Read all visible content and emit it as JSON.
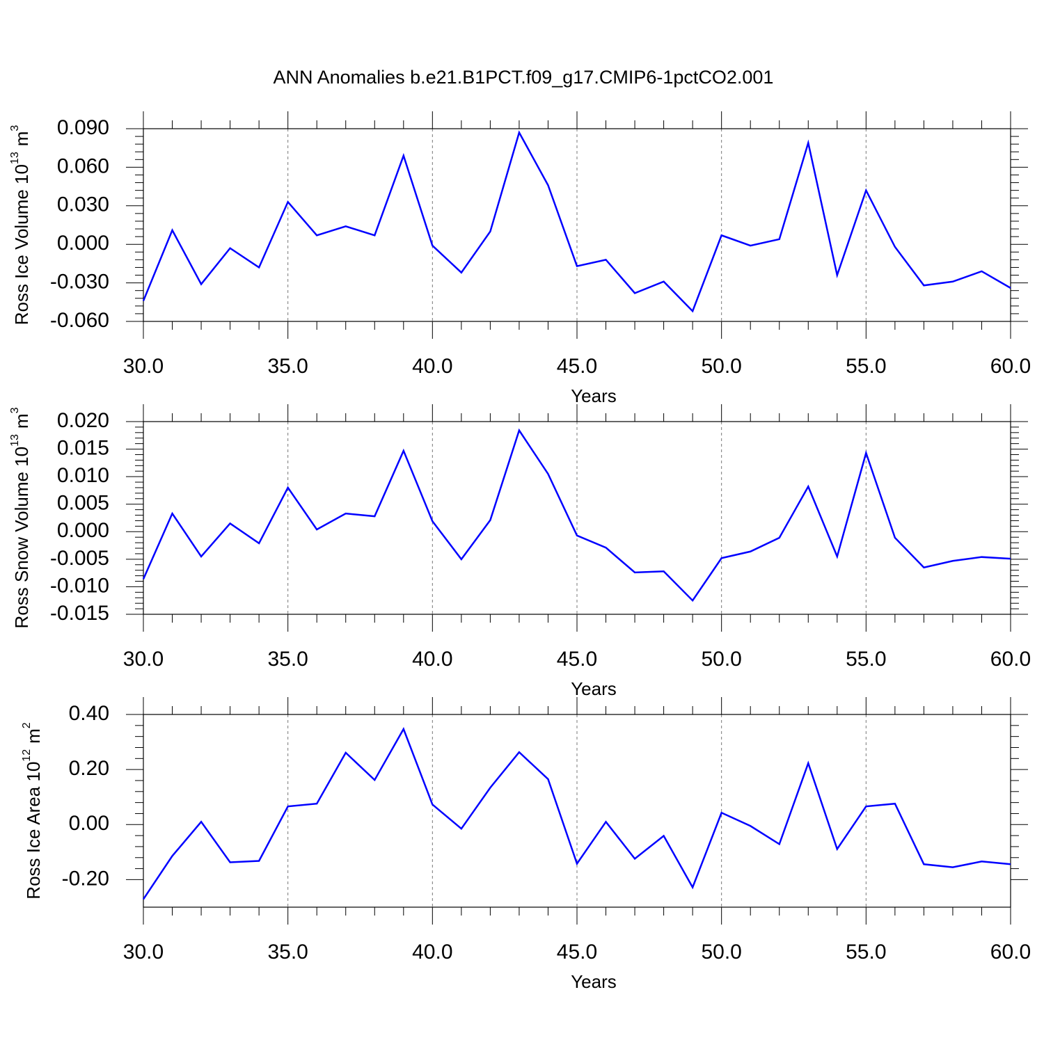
{
  "chart_data": [
    {
      "type": "line",
      "title": "ANN Anomalies b.e21.B1PCT.f09_g17.CMIP6-1pctCO2.001",
      "xlabel": "Years",
      "ylabel": [
        "Ross Ice Volume 10",
        "13",
        "m",
        "3"
      ],
      "x": [
        30,
        31,
        32,
        33,
        34,
        35,
        36,
        37,
        38,
        39,
        40,
        41,
        42,
        43,
        44,
        45,
        46,
        47,
        48,
        49,
        50,
        51,
        52,
        53,
        54,
        55,
        56,
        57,
        58,
        59,
        60
      ],
      "values": [
        -0.044,
        0.011,
        -0.031,
        -0.003,
        -0.018,
        0.033,
        0.007,
        0.014,
        0.007,
        0.069,
        -0.001,
        -0.022,
        0.01,
        0.087,
        0.046,
        -0.017,
        -0.012,
        -0.038,
        -0.029,
        -0.052,
        0.007,
        -0.001,
        0.004,
        0.079,
        -0.024,
        0.042,
        -0.002,
        -0.032,
        -0.029,
        -0.021,
        -0.034
      ],
      "color": "#0000ff",
      "xlim": [
        30,
        60
      ],
      "xticks": [
        {
          "value": 30,
          "label": "30.0"
        },
        {
          "value": 35,
          "label": "35.0"
        },
        {
          "value": 40,
          "label": "40.0"
        },
        {
          "value": 45,
          "label": "45.0"
        },
        {
          "value": 50,
          "label": "50.0"
        },
        {
          "value": 55,
          "label": "55.0"
        },
        {
          "value": 60,
          "label": "60.0"
        }
      ],
      "ylim": [
        -0.06,
        0.09
      ],
      "yticks": [
        {
          "value": -0.06,
          "label": "-0.060"
        },
        {
          "value": -0.03,
          "label": "-0.030"
        },
        {
          "value": 0,
          "label": "0.000"
        },
        {
          "value": 0.03,
          "label": "0.030"
        },
        {
          "value": 0.06,
          "label": "0.060"
        },
        {
          "value": 0.09,
          "label": "0.090"
        }
      ],
      "xgrid": true
    },
    {
      "type": "line",
      "xlabel": "Years",
      "ylabel": [
        "Ross Snow Volume 10",
        "13",
        "m",
        "3"
      ],
      "x": [
        30,
        31,
        32,
        33,
        34,
        35,
        36,
        37,
        38,
        39,
        40,
        41,
        42,
        43,
        44,
        45,
        46,
        47,
        48,
        49,
        50,
        51,
        52,
        53,
        54,
        55,
        56,
        57,
        58,
        59,
        60
      ],
      "values": [
        -0.0086,
        0.0033,
        -0.0045,
        0.0015,
        -0.0021,
        0.008,
        0.0004,
        0.0033,
        0.0028,
        0.0147,
        0.0019,
        -0.005,
        0.0021,
        0.0184,
        0.0105,
        -0.0007,
        -0.0029,
        -0.0074,
        -0.0072,
        -0.0125,
        -0.0048,
        -0.0036,
        -0.0011,
        0.0082,
        -0.0045,
        0.0143,
        -0.0011,
        -0.0065,
        -0.0053,
        -0.0046,
        -0.0049
      ],
      "color": "#0000ff",
      "xlim": [
        30,
        60
      ],
      "xticks": [
        {
          "value": 30,
          "label": "30.0"
        },
        {
          "value": 35,
          "label": "35.0"
        },
        {
          "value": 40,
          "label": "40.0"
        },
        {
          "value": 45,
          "label": "45.0"
        },
        {
          "value": 50,
          "label": "50.0"
        },
        {
          "value": 55,
          "label": "55.0"
        },
        {
          "value": 60,
          "label": "60.0"
        }
      ],
      "ylim": [
        -0.015,
        0.02
      ],
      "yticks": [
        {
          "value": -0.015,
          "label": "-0.015"
        },
        {
          "value": -0.01,
          "label": "-0.010"
        },
        {
          "value": -0.005,
          "label": "-0.005"
        },
        {
          "value": 0,
          "label": "0.000"
        },
        {
          "value": 0.005,
          "label": "0.005"
        },
        {
          "value": 0.01,
          "label": "0.010"
        },
        {
          "value": 0.015,
          "label": "0.015"
        },
        {
          "value": 0.02,
          "label": "0.020"
        }
      ],
      "xgrid": true
    },
    {
      "type": "line",
      "xlabel": "Years",
      "ylabel": [
        "Ross Ice Area 10",
        "12",
        "m",
        "2"
      ],
      "x": [
        30,
        31,
        32,
        33,
        34,
        35,
        36,
        37,
        38,
        39,
        40,
        41,
        42,
        43,
        44,
        45,
        46,
        47,
        48,
        49,
        50,
        51,
        52,
        53,
        54,
        55,
        56,
        57,
        58,
        59,
        60
      ],
      "values": [
        -0.271,
        -0.114,
        0.01,
        -0.137,
        -0.132,
        0.066,
        0.076,
        0.261,
        0.162,
        0.347,
        0.073,
        -0.015,
        0.134,
        0.263,
        0.165,
        -0.142,
        0.01,
        -0.124,
        -0.041,
        -0.228,
        0.043,
        -0.005,
        -0.071,
        0.223,
        -0.089,
        0.066,
        0.076,
        -0.144,
        -0.155,
        -0.134,
        -0.144
      ],
      "color": "#0000ff",
      "xlim": [
        30,
        60
      ],
      "xticks": [
        {
          "value": 30,
          "label": "30.0"
        },
        {
          "value": 35,
          "label": "35.0"
        },
        {
          "value": 40,
          "label": "40.0"
        },
        {
          "value": 45,
          "label": "45.0"
        },
        {
          "value": 50,
          "label": "50.0"
        },
        {
          "value": 55,
          "label": "55.0"
        },
        {
          "value": 60,
          "label": "60.0"
        }
      ],
      "ylim": [
        -0.3,
        0.4
      ],
      "yticks": [
        {
          "value": -0.2,
          "label": "-0.20"
        },
        {
          "value": 0,
          "label": "0.00"
        },
        {
          "value": 0.2,
          "label": "0.20"
        },
        {
          "value": 0.4,
          "label": "0.40"
        }
      ],
      "xgrid": true
    }
  ]
}
